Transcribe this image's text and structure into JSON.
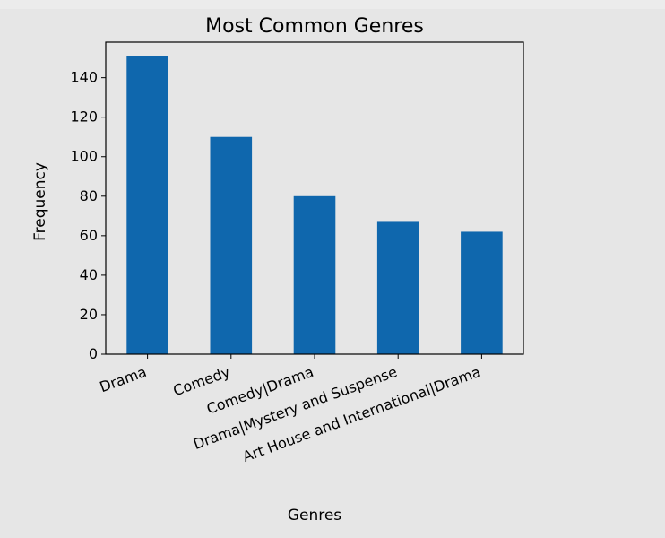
{
  "chart_data": {
    "type": "bar",
    "title": "Most Common Genres",
    "xlabel": "Genres",
    "ylabel": "Frequency",
    "categories": [
      "Drama",
      "Comedy",
      "Comedy|Drama",
      "Drama|Mystery and Suspense",
      "Art House and International|Drama"
    ],
    "values": [
      151,
      110,
      80,
      67,
      62
    ],
    "ylim": [
      0,
      158
    ],
    "yticks": [
      0,
      20,
      40,
      60,
      80,
      100,
      120,
      140
    ],
    "bar_color": "#0f67ad",
    "grid": false,
    "legend": "none"
  },
  "colors": {
    "background": "#e6e6e6",
    "plot_background": "#e6e6e6",
    "axis": "#000000"
  }
}
